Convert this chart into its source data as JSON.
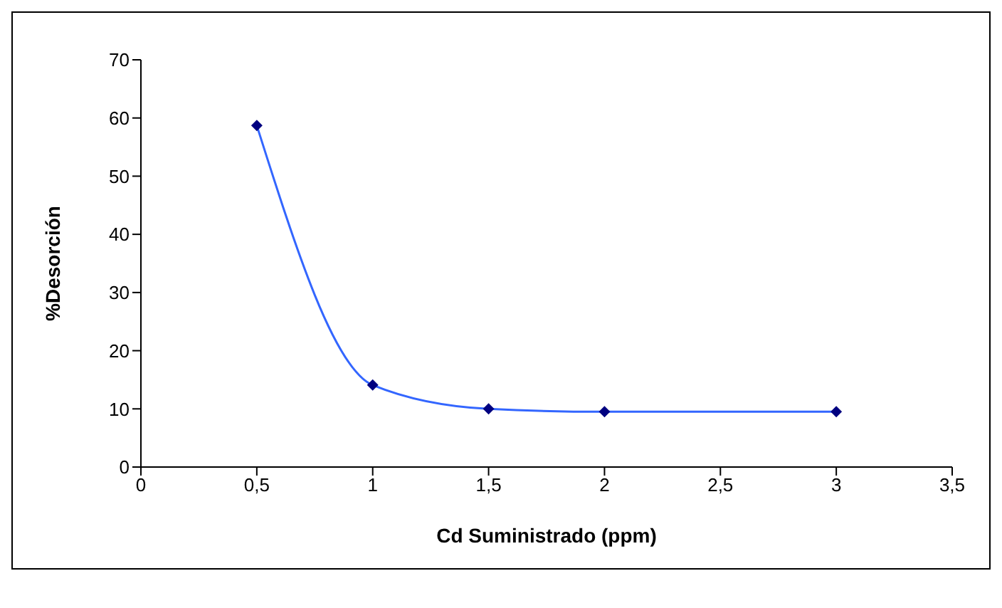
{
  "chart_data": {
    "type": "line",
    "xlabel": "Cd Suministrado (ppm)",
    "ylabel": "%Desorción",
    "x": [
      0.5,
      1,
      1.5,
      2,
      3
    ],
    "series": [
      {
        "color": "#3366ff",
        "colors": [
          "#000080",
          "#000080",
          "#000080",
          "#000080",
          "#000080"
        ],
        "values": [
          58.7,
          14.1,
          10,
          9.5,
          9.5
        ]
      }
    ],
    "xlim": [
      0,
      3.5
    ],
    "xticks": [
      0,
      {
        "value": 0.5,
        "label": "0,5"
      },
      1,
      {
        "value": 1.5,
        "label": "1,5"
      },
      2,
      {
        "value": 2.5,
        "label": "2,5"
      },
      3,
      {
        "value": 3.5,
        "label": "3,5"
      }
    ],
    "ylim": [
      0,
      70
    ],
    "yticks": [
      0,
      10,
      20,
      30,
      40,
      50,
      60,
      70
    ],
    "grid": false,
    "legend": false,
    "marker": "diamond",
    "line_style": "solid"
  }
}
